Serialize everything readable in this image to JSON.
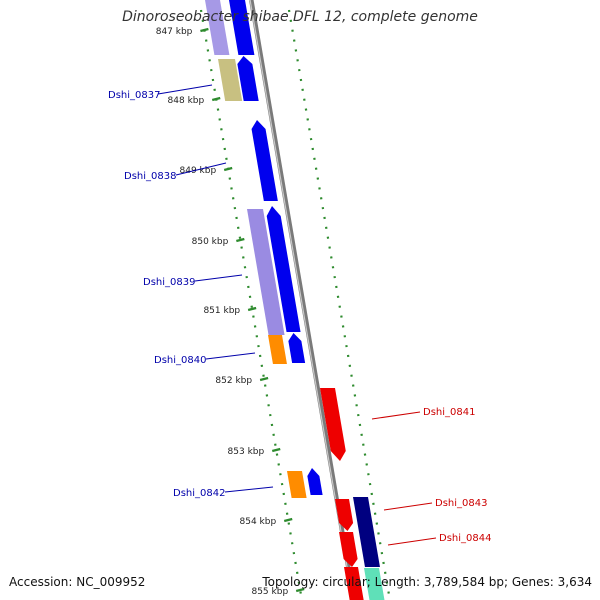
{
  "title": "Dinoroseobacter shibae DFL 12, complete genome",
  "footer": {
    "accession": "Accession: NC_009952",
    "summary": "Topology: circular; Length: 3,789,584 bp; Genes: 3,634"
  },
  "colors": {
    "backbone": "#8f8f8f",
    "ruler_dots": "#2e8b2e",
    "forward_cds": "#0000ee",
    "reverse_cds": "#ee0000",
    "gene_feature": "#8877dd",
    "gene_feature_alt": "#c8c081",
    "rna_like": "#ff8c00",
    "dark_gene": "#000080",
    "teal_feature": "#5fe0b8",
    "forward_label": "#0000aa",
    "reverse_label": "#cc0000",
    "tick_label": "#222222"
  },
  "ticks": [
    {
      "label": "847 kbp"
    },
    {
      "label": "848 kbp"
    },
    {
      "label": "849 kbp"
    },
    {
      "label": "850 kbp"
    },
    {
      "label": "851 kbp"
    },
    {
      "label": "852 kbp"
    },
    {
      "label": "853 kbp"
    },
    {
      "label": "854 kbp"
    },
    {
      "label": "855 kbp"
    }
  ],
  "forward_labels": [
    {
      "text": "Dshi_0837"
    },
    {
      "text": "Dshi_0838"
    },
    {
      "text": "Dshi_0839"
    },
    {
      "text": "Dshi_0840"
    },
    {
      "text": "Dshi_0842"
    }
  ],
  "reverse_labels": [
    {
      "text": "Dshi_0841"
    },
    {
      "text": "Dshi_0843"
    },
    {
      "text": "Dshi_0844"
    }
  ]
}
